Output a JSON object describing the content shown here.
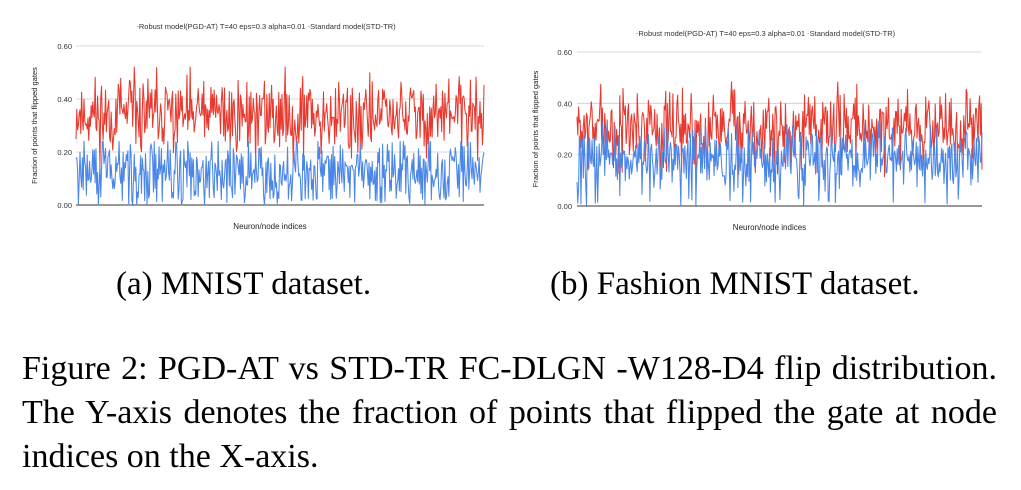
{
  "chart_data": [
    {
      "type": "line",
      "panel_caption": "(a) MNIST dataset.",
      "title": "",
      "xlabel": "Neuron/node indices",
      "ylabel": "Fraction of points that flipped gates",
      "ylim": [
        0,
        0.6
      ],
      "yticks": [
        "0.00",
        "0.20",
        "0.40",
        "0.60"
      ],
      "x_count": 512,
      "grid": true,
      "legend_position": "top",
      "series": [
        {
          "name": "Robust model(PGD-AT) T=40 eps=0.3 alpha=0.01",
          "color": "#e8392f",
          "mean": 0.34,
          "noise": 0.09,
          "min": 0.12,
          "max": 0.52,
          "seed": 11,
          "drop_prob": 0.01,
          "drop_level": 0.15
        },
        {
          "name": "Standard model(STD-TR)",
          "color": "#4a86e8",
          "mean": 0.135,
          "noise": 0.075,
          "min": 0.0,
          "max": 0.24,
          "seed": 29,
          "drop_prob": 0.09,
          "drop_level": 0.0
        }
      ]
    },
    {
      "type": "line",
      "panel_caption": "(b) Fashion MNIST dataset.",
      "title": "",
      "xlabel": "Neuron/node indices",
      "ylabel": "Fraction of points that flipped gates",
      "ylim": [
        0,
        0.6
      ],
      "yticks": [
        "0.00",
        "0.20",
        "0.40",
        "0.60"
      ],
      "x_count": 512,
      "grid": true,
      "legend_position": "top",
      "series": [
        {
          "name": "Robust model(PGD-AT) T=40 eps=0.3 alpha=0.01",
          "color": "#e8392f",
          "mean": 0.31,
          "noise": 0.09,
          "min": 0.05,
          "max": 0.57,
          "seed": 7,
          "drop_prob": 0.02,
          "drop_level": 0.12
        },
        {
          "name": "Standard model(STD-TR)",
          "color": "#4a86e8",
          "mean": 0.19,
          "noise": 0.075,
          "min": 0.0,
          "max": 0.33,
          "seed": 43,
          "drop_prob": 0.07,
          "drop_level": 0.0
        }
      ]
    }
  ],
  "figure_caption": "Figure 2: PGD-AT vs STD-TR FC-DLGN -W128-D4 flip distribution. The Y-axis denotes the fraction of points that flipped the gate at node indices on the X-axis."
}
